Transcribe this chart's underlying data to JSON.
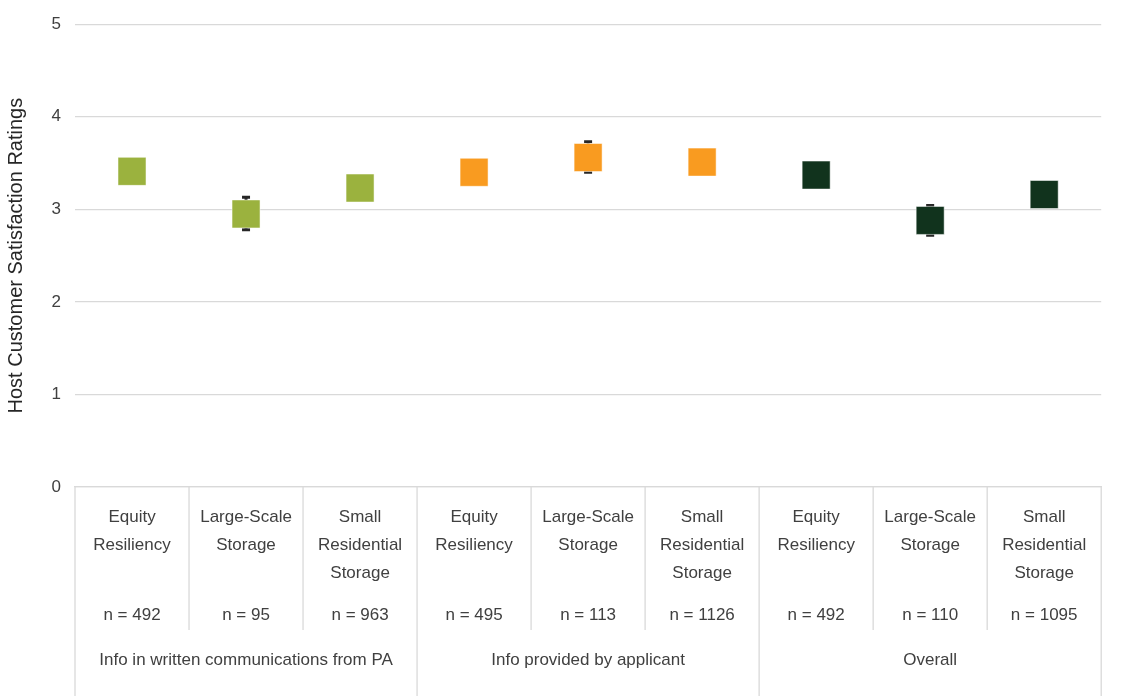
{
  "chart_data": {
    "type": "scatter",
    "ylabel": "Host Customer Satisfaction Ratings",
    "categories": [
      "Equity Resiliency\nn = 492",
      "Large-Scale Storage\nn = 95",
      "Small Residential Storage\nn = 963",
      "Equity Resiliency\nn = 495",
      "Large-Scale Storage\nn = 113",
      "Small Residential Storage\nn = 1126",
      "Equity Resiliency\nn = 492",
      "Large-Scale Storage\nn = 110",
      "Small Residential Storage\nn = 1095"
    ],
    "values": [
      3.41,
      2.95,
      3.23,
      3.4,
      3.56,
      3.51,
      3.37,
      2.88,
      3.16
    ],
    "colors": [
      "#9bb23e",
      "#9bb23e",
      "#9bb23e",
      "#f99b20",
      "#f99b20",
      "#f99b20",
      "#11331d",
      "#11331d",
      "#11331d"
    ],
    "errors": [
      null,
      [
        2.78,
        3.13
      ],
      null,
      null,
      [
        3.4,
        3.73
      ],
      null,
      null,
      [
        2.72,
        3.04
      ],
      null
    ],
    "annotations": [
      "Info in written communications from PA",
      "Info provided by applicant",
      "Overall"
    ],
    "ylim": [
      0,
      5
    ],
    "yticks": [
      0,
      1,
      2,
      3,
      4,
      5
    ],
    "grid": "y",
    "marker": "square",
    "legend": false
  }
}
